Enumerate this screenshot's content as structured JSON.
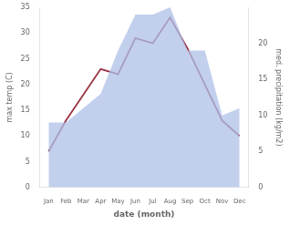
{
  "chart_data": {
    "type": "line",
    "xlabel": "date (month)",
    "ylabel": "max temp (C)",
    "y2label": "med. precipitation (kg/m2)",
    "categories": [
      "Jan",
      "Feb",
      "Mar",
      "Apr",
      "May",
      "Jun",
      "Jul",
      "Aug",
      "Sep",
      "Oct",
      "Nov",
      "Dec"
    ],
    "series": [
      {
        "type": "area",
        "color": "#aec0e8",
        "axis": "y2",
        "values": [
          9,
          9,
          11,
          13,
          19,
          24,
          24,
          25,
          19,
          19,
          10,
          11
        ]
      },
      {
        "type": "line",
        "color": "#993344",
        "values": [
          7,
          13,
          18,
          23,
          22,
          29,
          28,
          33,
          27,
          20,
          13,
          10
        ]
      }
    ],
    "ylim": [
      0,
      35
    ],
    "yticks": [
      0,
      5,
      10,
      15,
      20,
      25,
      30,
      35
    ],
    "y2lim": [
      0,
      25
    ],
    "y2ticks": [
      0,
      5,
      10,
      15,
      20
    ],
    "grid": false
  }
}
